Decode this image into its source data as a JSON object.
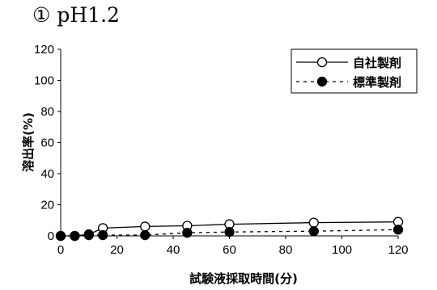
{
  "chart_data": {
    "type": "line",
    "title": "① pH1.2",
    "xlabel": "試験液採取時間(分)",
    "ylabel": "溶出率(%)",
    "xlim": [
      0,
      120
    ],
    "ylim": [
      0,
      120
    ],
    "xticks": [
      0,
      20,
      40,
      60,
      80,
      100,
      120
    ],
    "yticks": [
      0,
      20,
      40,
      60,
      80,
      100,
      120
    ],
    "grid": false,
    "legend_position": "top-right",
    "series": [
      {
        "name": "自社製剤",
        "line_style": "solid",
        "marker": "open-circle",
        "x": [
          0,
          5,
          10,
          15,
          30,
          45,
          60,
          90,
          120
        ],
        "y": [
          0,
          0,
          1,
          5,
          6,
          6.5,
          7.5,
          8.5,
          9
        ]
      },
      {
        "name": "標準製剤",
        "line_style": "dashed",
        "marker": "filled-circle",
        "x": [
          0,
          5,
          10,
          15,
          30,
          45,
          60,
          90,
          120
        ],
        "y": [
          0,
          0,
          0.5,
          0.5,
          0.5,
          2,
          2.5,
          3,
          4
        ]
      }
    ]
  }
}
